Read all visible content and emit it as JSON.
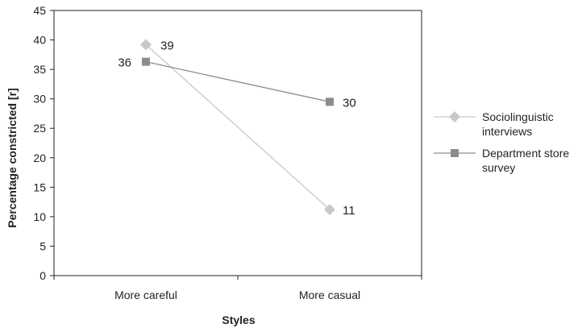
{
  "chart_data": {
    "type": "line",
    "title": "",
    "xlabel": "Styles",
    "ylabel": "Percentage constricted [r]",
    "categories": [
      "More careful",
      "More casual"
    ],
    "ylim": [
      0,
      45
    ],
    "ytick_step": 5,
    "grid": false,
    "legend_position": "right",
    "series": [
      {
        "name": "Sociolinguistic interviews",
        "legend_lines": [
          "Sociolinguistic",
          "interviews"
        ],
        "values": [
          39.2,
          11.2
        ],
        "labels": [
          "39",
          "11"
        ],
        "color": "#c8c8c8",
        "marker": "diamond"
      },
      {
        "name": "Department store survey",
        "legend_lines": [
          "Department store",
          "survey"
        ],
        "values": [
          36.3,
          29.5
        ],
        "labels": [
          "36",
          "30"
        ],
        "color": "#8c8c8c",
        "marker": "square"
      }
    ]
  }
}
